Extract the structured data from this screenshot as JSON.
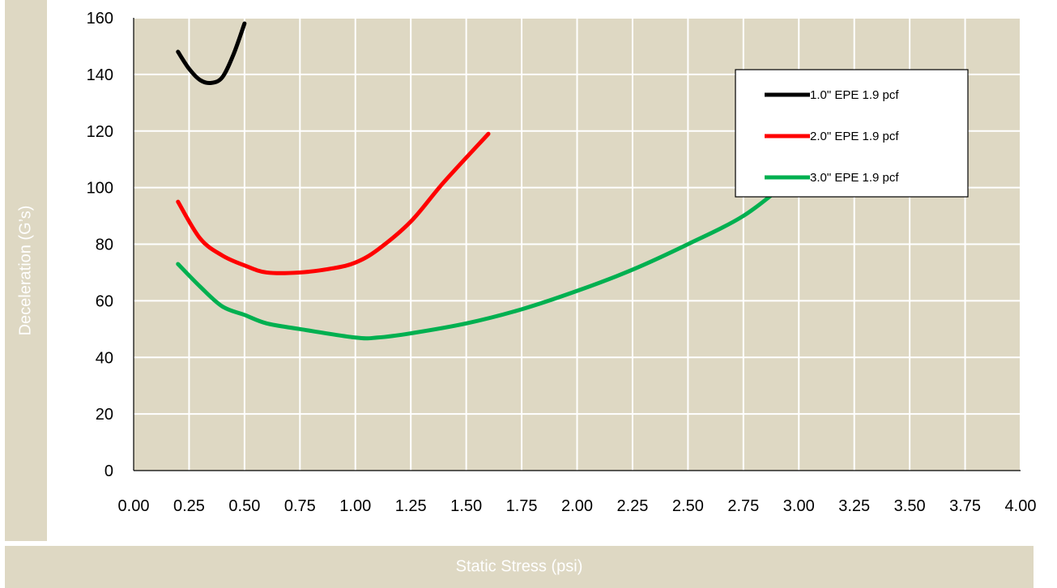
{
  "chart_data": {
    "type": "line",
    "title": "",
    "xlabel": "Static Stress (psi)",
    "ylabel": "Deceleration (G’s)",
    "xlim": [
      0,
      4
    ],
    "ylim": [
      0,
      160
    ],
    "grid": true,
    "legend_position": "top-right",
    "background_color": "#ded8c3",
    "x_ticks": [
      "0.00",
      "0.25",
      "0.50",
      "0.75",
      "1.00",
      "1.25",
      "1.50",
      "1.75",
      "2.00",
      "2.25",
      "2.50",
      "2.75",
      "3.00",
      "3.25",
      "3.50",
      "3.75",
      "4.00"
    ],
    "y_ticks": [
      "0",
      "20",
      "40",
      "60",
      "80",
      "100",
      "120",
      "140",
      "160"
    ],
    "series": [
      {
        "name": "1.0\" EPE 1.9 pcf",
        "color": "#000000",
        "x": [
          0.2,
          0.25,
          0.3,
          0.35,
          0.4,
          0.45,
          0.5
        ],
        "y": [
          148,
          142,
          138,
          137,
          139,
          147,
          158
        ]
      },
      {
        "name": "2.0\" EPE 1.9 pcf",
        "color": "#ff0000",
        "x": [
          0.2,
          0.3,
          0.4,
          0.5,
          0.6,
          0.75,
          0.9,
          1.0,
          1.1,
          1.25,
          1.4,
          1.6
        ],
        "y": [
          95,
          82,
          76,
          72.5,
          70,
          70,
          71.5,
          73.5,
          78,
          88,
          102,
          119
        ]
      },
      {
        "name": "3.0\" EPE 1.9 pcf",
        "color": "#00b050",
        "x": [
          0.2,
          0.3,
          0.4,
          0.5,
          0.6,
          0.75,
          1.0,
          1.1,
          1.25,
          1.5,
          1.75,
          2.0,
          2.25,
          2.5,
          2.75,
          2.95
        ],
        "y": [
          73,
          65,
          58,
          55,
          52,
          50,
          47,
          47,
          48.5,
          52,
          57,
          63.5,
          71,
          80,
          90,
          102
        ]
      }
    ]
  }
}
